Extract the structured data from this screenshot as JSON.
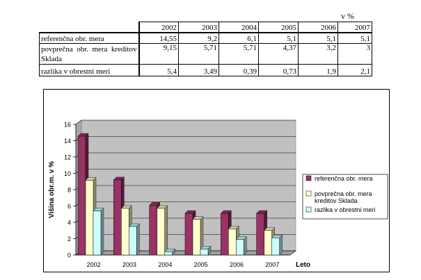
{
  "unit_label": "v %",
  "table": {
    "years": [
      "2002",
      "2003",
      "2004",
      "2005",
      "2006",
      "2007"
    ],
    "rows": [
      {
        "label": "referenčna obr. mera",
        "values": [
          "14,55",
          "9,2",
          "6,1",
          "5,1",
          "5,1",
          "5,1"
        ]
      },
      {
        "label": "povprečna obr. mera kreditov Sklada",
        "values": [
          "9,15",
          "5,71",
          "5,71",
          "4,37",
          "3,2",
          "3"
        ]
      },
      {
        "label": "razlika v obrestni meri",
        "values": [
          "5,4",
          "3,49",
          "0,39",
          "0,73",
          "1,9",
          "2,1"
        ]
      }
    ]
  },
  "chart_data": {
    "type": "bar",
    "categories": [
      "2002",
      "2003",
      "2004",
      "2005",
      "2006",
      "2007"
    ],
    "series": [
      {
        "name": "referenčna obr. mera",
        "values": [
          14.55,
          9.2,
          6.1,
          5.1,
          5.1,
          5.1
        ],
        "color": "#993366"
      },
      {
        "name": "povprečna obr. mera kreditov Sklada",
        "values": [
          9.15,
          5.71,
          5.71,
          4.37,
          3.2,
          3
        ],
        "color": "#ffffcc"
      },
      {
        "name": "razlika v obrestni meri",
        "values": [
          5.4,
          3.49,
          0.39,
          0.73,
          1.9,
          2.1
        ],
        "color": "#ccffff"
      }
    ],
    "legend_lines": [
      [
        "referenčna obr. mera"
      ],
      [
        "povprečna obr. mera",
        "kreditov Sklada"
      ],
      [
        "razlika v obrestni meri"
      ]
    ],
    "xlabel": "Leto",
    "ylabel": "Višina obr.m. v %",
    "ylim": [
      0,
      16
    ],
    "yticks": [
      "0",
      "2",
      "4",
      "6",
      "8",
      "10",
      "12",
      "14",
      "16"
    ],
    "grid": true,
    "plot_background": "#c0c0c0",
    "legend_position": "right",
    "chart_style": "3d-bar"
  }
}
